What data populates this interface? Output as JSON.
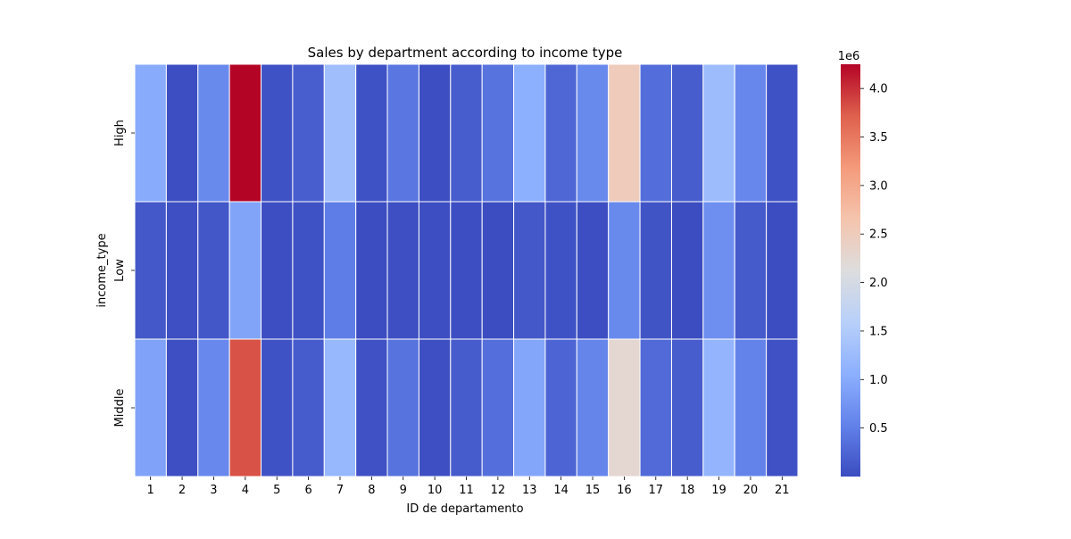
{
  "chart_data": {
    "type": "heatmap",
    "title": "Sales by department according to income type",
    "xlabel": "ID de departamento",
    "ylabel": "income_type",
    "x_categories": [
      "1",
      "2",
      "3",
      "4",
      "5",
      "6",
      "7",
      "8",
      "9",
      "10",
      "11",
      "12",
      "13",
      "14",
      "15",
      "16",
      "17",
      "18",
      "19",
      "20",
      "21"
    ],
    "y_categories": [
      "High",
      "Low",
      "Middle"
    ],
    "values": [
      [
        1000000,
        20000,
        620000,
        4250000,
        60000,
        180000,
        1300000,
        60000,
        420000,
        20000,
        160000,
        380000,
        1050000,
        270000,
        620000,
        2500000,
        330000,
        170000,
        1260000,
        590000,
        60000
      ],
      [
        120000,
        30000,
        110000,
        920000,
        20000,
        60000,
        480000,
        10000,
        30000,
        20000,
        20000,
        5000,
        120000,
        60000,
        20000,
        620000,
        80000,
        5000,
        680000,
        140000,
        5000
      ],
      [
        900000,
        30000,
        600000,
        3800000,
        60000,
        150000,
        1200000,
        50000,
        380000,
        30000,
        150000,
        340000,
        950000,
        250000,
        570000,
        2270000,
        300000,
        160000,
        1150000,
        540000,
        50000
      ]
    ],
    "colormap": "coolwarm",
    "vmin": 0,
    "vmax": 4250000,
    "colorbar": {
      "multiplier_label": "1e6",
      "ticks": [
        0.5,
        1.0,
        1.5,
        2.0,
        2.5,
        3.0,
        3.5,
        4.0
      ],
      "tick_labels": [
        "0.5",
        "1.0",
        "1.5",
        "2.0",
        "2.5",
        "3.0",
        "3.5",
        "4.0"
      ],
      "scale": 1000000
    },
    "cell_border_color": "#ffffff"
  }
}
